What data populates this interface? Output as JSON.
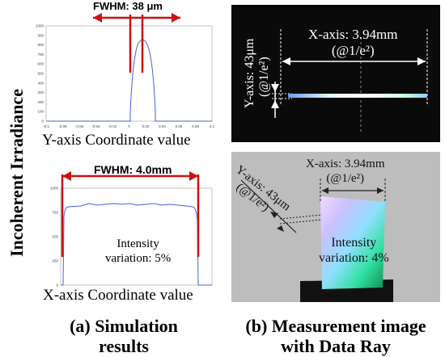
{
  "vertical_label": "Incoherent Irradiance",
  "left_top": {
    "fwhm_label": "FWHM: 38 μm",
    "axis_title": "Y-axis Coordinate value",
    "yticks": [
      "0",
      "100",
      "200",
      "300",
      "400",
      "500",
      "600",
      "700",
      "800",
      "900",
      "1000"
    ],
    "xticks": [
      "-0.1",
      "-0.08",
      "-0.06",
      "-0.04",
      "-0.02",
      "0",
      "0.02",
      "0.04",
      "0.06",
      "0.08",
      "0.1"
    ]
  },
  "left_bottom": {
    "fwhm_label": "FWHM: 4.0mm",
    "axis_title": "X-axis Coordinate value",
    "yticks": [
      "0",
      "250",
      "500",
      "750",
      "1000"
    ],
    "intensity_line1": "Intensity",
    "intensity_line2": "variation: 5%"
  },
  "caption_a": {
    "line1": "(a) Simulation",
    "line2": "results"
  },
  "right_top": {
    "x_label": "X-axis: 3.94mm",
    "x_sub": "(@1/e²)",
    "y_label": "Y-axis: 43μm",
    "y_sub": "(@1/e²)"
  },
  "right_bottom": {
    "x_label": "X-axis: 3.94mm",
    "x_sub": "(@1/e²)",
    "y_label": "Y-axis: 43μm",
    "y_sub": "(@1/e²)",
    "intensity_line1": "Intensity",
    "intensity_line2": "variation: 4%"
  },
  "caption_b": {
    "line1": "(b) Measurement image",
    "line2": "with Data Ray"
  },
  "colors": {
    "arrow_red": "#cc1111",
    "curve_blue": "#4a5fd6",
    "dark_bg": "#0a0a0a",
    "gray_bg": "#bdbdbd"
  }
}
